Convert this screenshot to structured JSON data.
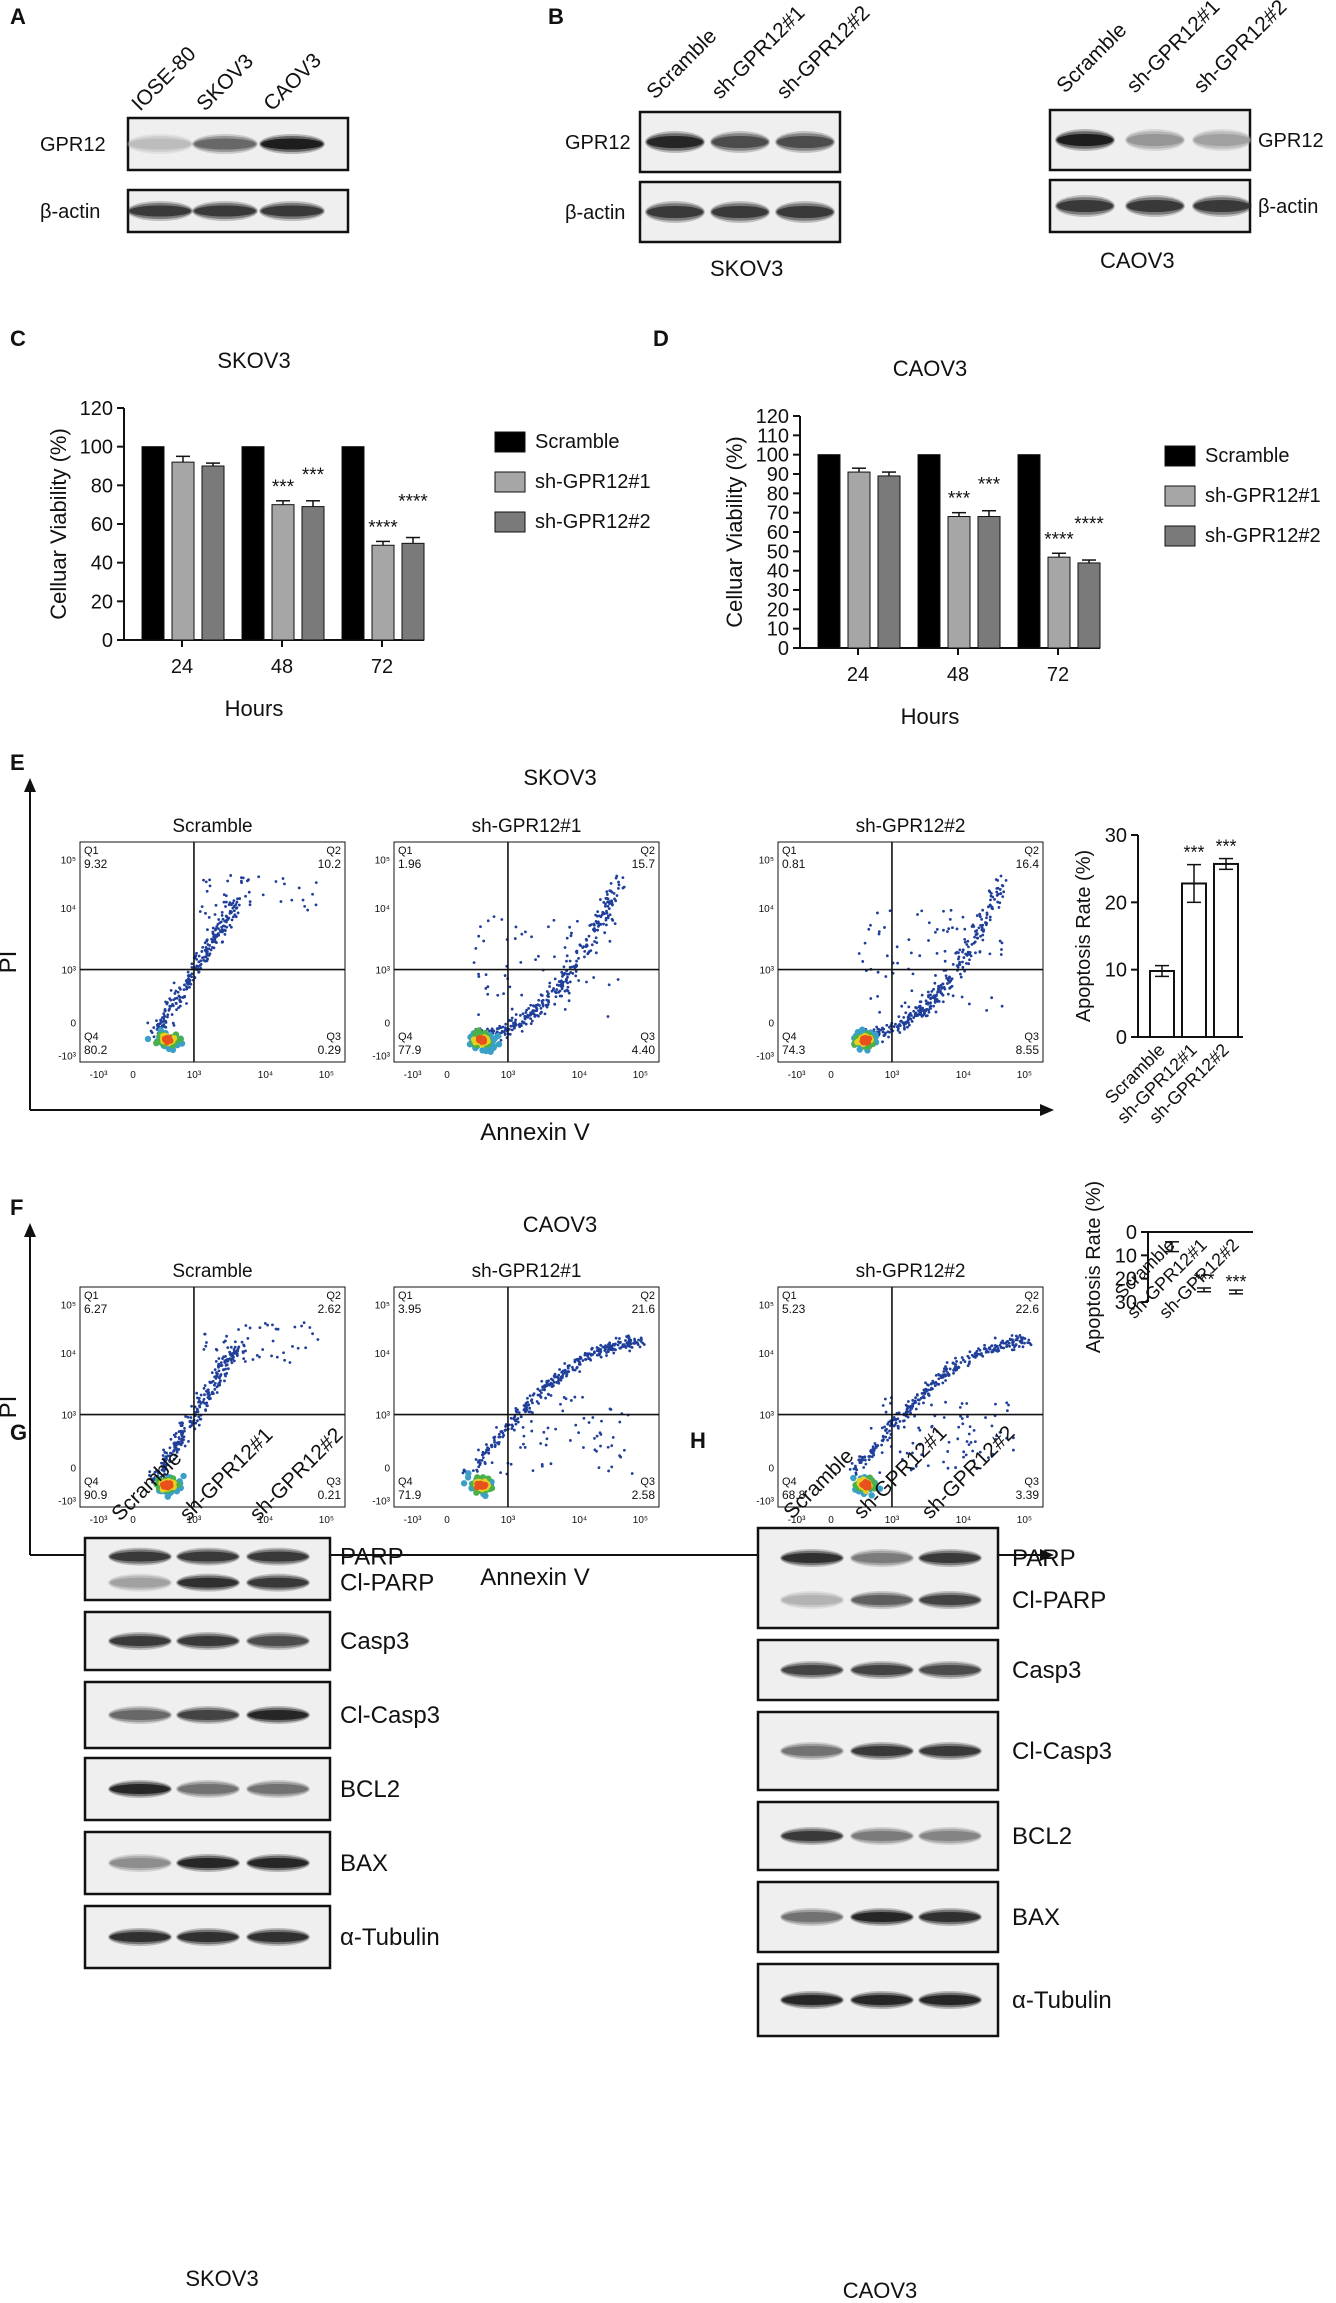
{
  "panelA": {
    "letter": "A",
    "lanes": [
      "IOSE-80",
      "SKOV3",
      "CAOV3"
    ],
    "rows": [
      {
        "label": "GPR12",
        "bands": [
          0.15,
          0.6,
          1.0
        ]
      },
      {
        "label": "β-actin",
        "bands": [
          0.85,
          0.85,
          0.85
        ]
      }
    ]
  },
  "panelB": {
    "letter": "B",
    "lanes": [
      "Scramble",
      "sh-GPR12#1",
      "sh-GPR12#2"
    ],
    "left": {
      "cell": "SKOV3",
      "rows": [
        {
          "label": "GPR12",
          "bands": [
            0.95,
            0.75,
            0.75
          ]
        },
        {
          "label": "β-actin",
          "bands": [
            0.85,
            0.85,
            0.85
          ]
        }
      ]
    },
    "right": {
      "cell": "CAOV3",
      "rows": [
        {
          "label": "GPR12",
          "bands": [
            1.0,
            0.35,
            0.3
          ]
        },
        {
          "label": "β-actin",
          "bands": [
            0.85,
            0.85,
            0.85
          ]
        }
      ]
    }
  },
  "chart_data": [
    {
      "panel": "C",
      "type": "bar",
      "title": "SKOV3",
      "xlabel": "Hours",
      "ylabel": "Celluar Viability (%)",
      "categories": [
        "24",
        "48",
        "72"
      ],
      "ylim": [
        0,
        120
      ],
      "yticks": [
        "0",
        "20",
        "40",
        "60",
        "80",
        "100",
        "120"
      ],
      "series": [
        {
          "name": "Scramble",
          "color": "#000000",
          "values": [
            100,
            100,
            100
          ],
          "errors": [
            0,
            0,
            0
          ],
          "sig": [
            "",
            "",
            ""
          ]
        },
        {
          "name": "sh-GPR12#1",
          "color": "#a6a6a6",
          "values": [
            92,
            70,
            49
          ],
          "errors": [
            3,
            2,
            2
          ],
          "sig": [
            "",
            "***",
            "****"
          ]
        },
        {
          "name": "sh-GPR12#2",
          "color": "#7a7a7a",
          "values": [
            90,
            69,
            50
          ],
          "errors": [
            1.5,
            3,
            3
          ],
          "sig": [
            "",
            "***",
            "****"
          ]
        }
      ]
    },
    {
      "panel": "D",
      "type": "bar",
      "title": "CAOV3",
      "xlabel": "Hours",
      "ylabel": "Celluar Viability (%)",
      "categories": [
        "24",
        "48",
        "72"
      ],
      "ylim": [
        0,
        120
      ],
      "yticks": [
        "0",
        "10",
        "20",
        "30",
        "40",
        "50",
        "60",
        "70",
        "80",
        "90",
        "100",
        "110",
        "120"
      ],
      "series": [
        {
          "name": "Scramble",
          "color": "#000000",
          "values": [
            100,
            100,
            100
          ],
          "errors": [
            0,
            0,
            0
          ],
          "sig": [
            "",
            "",
            ""
          ]
        },
        {
          "name": "sh-GPR12#1",
          "color": "#a6a6a6",
          "values": [
            91,
            68,
            47
          ],
          "errors": [
            2,
            2,
            2
          ],
          "sig": [
            "",
            "***",
            "****"
          ]
        },
        {
          "name": "sh-GPR12#2",
          "color": "#7a7a7a",
          "values": [
            89,
            68,
            44
          ],
          "errors": [
            2,
            3,
            1.5
          ],
          "sig": [
            "",
            "***",
            "****"
          ]
        }
      ]
    },
    {
      "panel": "E",
      "type": "bar",
      "title": "",
      "ylabel": "Apoptosis Rate (%)",
      "categories": [
        "Scramble",
        "sh-GPR12#1",
        "sh-GPR12#2"
      ],
      "ylim": [
        0,
        30
      ],
      "yticks": [
        "0",
        "10",
        "20",
        "30"
      ],
      "values": [
        9.8,
        22.8,
        25.7
      ],
      "errors": [
        0.8,
        2.8,
        0.8
      ],
      "sig": [
        "",
        "***",
        "***"
      ]
    },
    {
      "panel": "F",
      "type": "bar",
      "title": "",
      "ylabel": "Apoptosis Rate (%)",
      "categories": [
        "Scramble",
        "sh-GPR12#1",
        "sh-GPR12#2"
      ],
      "ylim": [
        0,
        30
      ],
      "yticks": [
        "0",
        "10",
        "20",
        "30"
      ],
      "values": [
        6.3,
        24.8,
        25.7
      ],
      "errors": [
        2.1,
        0.8,
        0.8
      ],
      "sig": [
        "",
        "***",
        "***"
      ]
    }
  ],
  "flow": {
    "E": {
      "letter": "E",
      "cell": "SKOV3",
      "xaxis": "Annexin V",
      "yaxis": "PI",
      "plots": [
        {
          "title": "Scramble",
          "q1": "9.32",
          "q2": "10.2",
          "q3": "0.29",
          "q4": "80.2",
          "shape": "narrow"
        },
        {
          "title": "sh-GPR12#1",
          "q1": "1.96",
          "q2": "15.7",
          "q3": "4.40",
          "q4": "77.9",
          "shape": "wide"
        },
        {
          "title": "sh-GPR12#2",
          "q1": "0.81",
          "q2": "16.4",
          "q3": "8.55",
          "q4": "74.3",
          "shape": "wide"
        }
      ]
    },
    "F": {
      "letter": "F",
      "cell": "CAOV3",
      "xaxis": "Annexin V",
      "yaxis": "PI",
      "plots": [
        {
          "title": "Scramble",
          "q1": "6.27",
          "q2": "2.62",
          "q3": "0.21",
          "q4": "90.9",
          "shape": "narrow"
        },
        {
          "title": "sh-GPR12#1",
          "q1": "3.95",
          "q2": "21.6",
          "q3": "2.58",
          "q4": "71.9",
          "shape": "arch"
        },
        {
          "title": "sh-GPR12#2",
          "q1": "5.23",
          "q2": "22.6",
          "q3": "3.39",
          "q4": "68.8",
          "shape": "arch"
        }
      ]
    },
    "xticks": [
      "-10³",
      "0",
      "10³",
      "10⁴",
      "10⁵"
    ],
    "yticks": [
      "10⁵",
      "10⁴",
      "10³",
      "0",
      "-10³"
    ]
  },
  "panelG": {
    "letter": "G",
    "cell": "SKOV3",
    "lanes": [
      "Scramble",
      "sh-GPR12#1",
      "sh-GPR12#2"
    ],
    "blots": [
      {
        "labels": [
          "PARP",
          "Cl-PARP"
        ],
        "bands": [
          [
            0.85,
            0.85,
            0.85
          ],
          [
            0.3,
            0.9,
            0.85
          ]
        ]
      },
      {
        "labels": [
          "Casp3"
        ],
        "bands": [
          [
            0.85,
            0.85,
            0.75
          ]
        ]
      },
      {
        "labels": [
          "Cl-Casp3"
        ],
        "bands": [
          [
            0.6,
            0.8,
            0.95
          ]
        ]
      },
      {
        "labels": [
          "BCL2"
        ],
        "bands": [
          [
            0.95,
            0.55,
            0.55
          ]
        ]
      },
      {
        "labels": [
          "BAX"
        ],
        "bands": [
          [
            0.4,
            0.95,
            0.95
          ]
        ]
      },
      {
        "labels": [
          "α-Tubulin"
        ],
        "bands": [
          [
            0.9,
            0.9,
            0.9
          ]
        ]
      }
    ]
  },
  "panelH": {
    "letter": "H",
    "cell": "CAOV3",
    "lanes": [
      "Scramble",
      "sh-GPR12#1",
      "sh-GPR12#2"
    ],
    "blots": [
      {
        "labels": [
          "PARP",
          "Cl-PARP"
        ],
        "bands": [
          [
            0.9,
            0.5,
            0.85
          ],
          [
            0.2,
            0.65,
            0.8
          ]
        ]
      },
      {
        "labels": [
          "Casp3"
        ],
        "bands": [
          [
            0.8,
            0.8,
            0.75
          ]
        ]
      },
      {
        "labels": [
          "Cl-Casp3"
        ],
        "bands": [
          [
            0.55,
            0.85,
            0.85
          ]
        ]
      },
      {
        "labels": [
          "BCL2"
        ],
        "bands": [
          [
            0.85,
            0.5,
            0.45
          ]
        ]
      },
      {
        "labels": [
          "BAX"
        ],
        "bands": [
          [
            0.55,
            0.95,
            0.9
          ]
        ]
      },
      {
        "labels": [
          "α-Tubulin"
        ],
        "bands": [
          [
            0.95,
            0.95,
            0.95
          ]
        ]
      }
    ]
  }
}
